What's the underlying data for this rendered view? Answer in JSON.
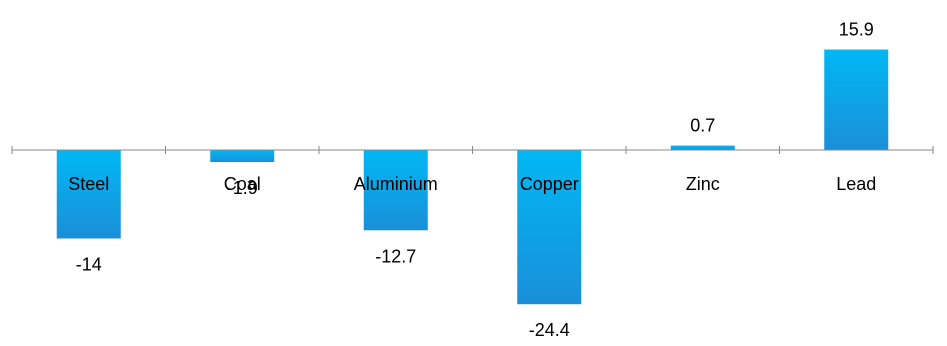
{
  "chart_data": {
    "type": "bar",
    "categories": [
      "Steel",
      "Coal",
      "Aluminium",
      "Copper",
      "Zinc",
      "Lead"
    ],
    "values": [
      -14,
      -1.9,
      -12.7,
      -24.4,
      0.7,
      15.9
    ],
    "value_labels": [
      "-14",
      "-1.9",
      "-12.7",
      "-24.4",
      "0.7",
      "15.9"
    ],
    "title": "",
    "xlabel": "",
    "ylabel": "",
    "ylim": [
      -24.4,
      15.9
    ],
    "grid": false,
    "legend": "none",
    "colors": {
      "bar_top": "#00B8F4",
      "bar_bottom": "#1A8FD8",
      "axis": "#888888",
      "text": "#000000"
    }
  }
}
